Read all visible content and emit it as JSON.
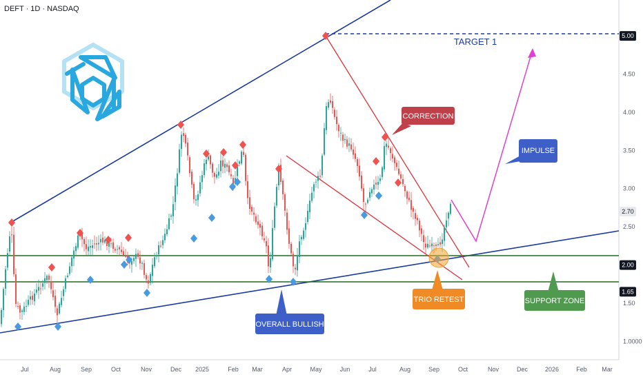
{
  "header": {
    "symbol_line": "DEFT · 1D · NASDAQ"
  },
  "colors": {
    "up": "#26a69a",
    "down": "#ef5350",
    "channel": "#1a3a9c",
    "support": "#1e6b1e",
    "correction": "#e0303a",
    "projection": "#e040d0",
    "diamond_top": "#ef5350",
    "diamond_bottom": "#4a9ae0",
    "logo": "#29a8e0",
    "trio": "#f2a22e"
  },
  "chart_data": {
    "type": "candlestick",
    "x_ticks": [
      "Jul",
      "Aug",
      "Sep",
      "Oct",
      "Nov",
      "Dec",
      "2025",
      "Feb",
      "Mar",
      "Apr",
      "May",
      "Jun",
      "Jul",
      "Aug",
      "Sep",
      "Oct",
      "Nov",
      "Dec",
      "2026",
      "Feb",
      "Mar"
    ],
    "y_ticks": [
      "4.50",
      "4.00",
      "3.50",
      "3.00",
      "2.50",
      "1.50",
      "1.0000"
    ],
    "ylim": [
      0.76,
      5.47
    ],
    "price_labels": [
      {
        "value": 5.0,
        "text": "5.00"
      },
      {
        "value": 2.7,
        "text": "2.70"
      },
      {
        "value": 2.0,
        "text": "2.00"
      },
      {
        "value": 1.65,
        "text": "1.65"
      }
    ],
    "support_levels": [
      2.0,
      1.65
    ],
    "target_level": 5.0,
    "annotations": [
      "TARGET 1",
      "CORRECTION",
      "IMPULSE",
      "OVERALL BULLISH",
      "TRIO RETEST",
      "SUPPORT ZONE"
    ],
    "last_price": 2.7
  },
  "annotations": {
    "target": "TARGET 1",
    "correction": "CORRECTION",
    "impulse": "IMPULSE",
    "overall": "OVERALL BULLISH",
    "trio": "TRIO RETEST",
    "support": "SUPPORT ZONE"
  }
}
